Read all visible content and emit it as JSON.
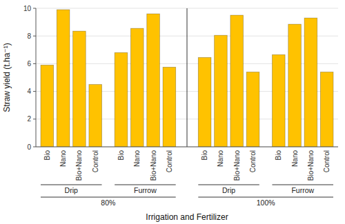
{
  "chart_data": {
    "type": "bar",
    "categories": [
      "Bio",
      "Nano",
      "Bio+Nano",
      "Control",
      "Bio",
      "Nano",
      "Bio+Nano",
      "Control",
      "Bio",
      "Nano",
      "Bio+Nano",
      "Control",
      "Bio",
      "Nano",
      "Bio+Nano",
      "Control"
    ],
    "values": [
      5.9,
      9.9,
      8.35,
      4.5,
      6.8,
      8.55,
      9.6,
      5.75,
      6.45,
      8.05,
      9.5,
      5.4,
      6.65,
      8.85,
      9.3,
      5.4
    ],
    "color": "#FFC200",
    "y_label": "Straw yield (t.ha⁻¹)",
    "x_label": "Irrigation and Fertilizer",
    "group_labels": [
      "Drip",
      "Furrow",
      "Drip",
      "Furrow"
    ],
    "level_labels": [
      "80%",
      "100%"
    ],
    "ylim": [
      0,
      10.0
    ],
    "yticks": [
      0,
      2,
      4,
      6,
      8,
      10
    ],
    "grid": true
  }
}
